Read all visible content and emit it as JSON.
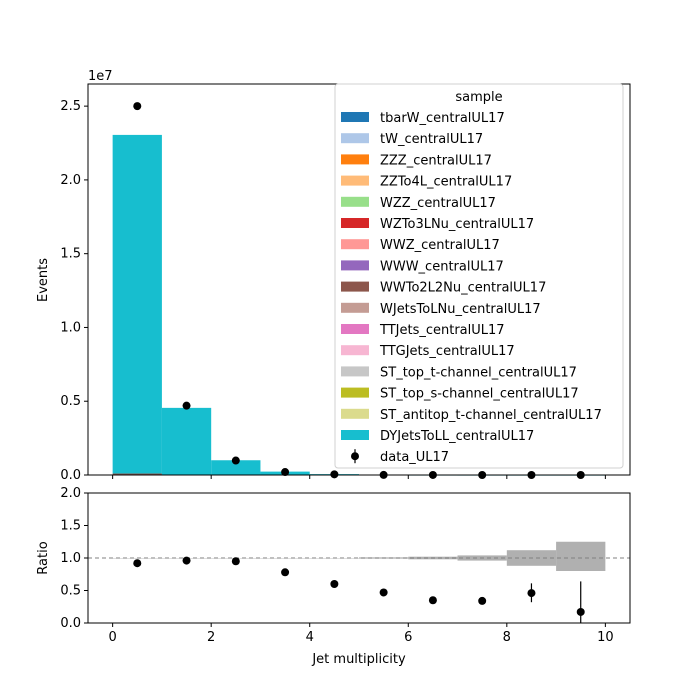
{
  "chart_data": [
    {
      "type": "bar",
      "subtype": "stacked-histogram-with-data-points",
      "xlabel": "",
      "ylabel": "Events",
      "y_scale_label": "1e7",
      "xlim": [
        -0.5,
        10.5
      ],
      "ylim": [
        0,
        26500000
      ],
      "yticks": [
        0,
        5000000,
        10000000,
        15000000,
        20000000,
        25000000
      ],
      "ytick_labels": [
        "0.0",
        "0.5",
        "1.0",
        "1.5",
        "2.0",
        "2.5"
      ],
      "bin_edges": [
        0,
        1,
        2,
        3,
        4,
        5,
        6,
        7,
        8,
        9,
        10
      ],
      "legend_title": "sample",
      "legend_position": "upper-right",
      "series": [
        {
          "name": "tbarW_centralUL17",
          "color": "#1f77b4",
          "values": [
            0,
            0,
            0,
            0,
            0,
            0,
            0,
            0,
            0,
            0
          ]
        },
        {
          "name": "tW_centralUL17",
          "color": "#aec7e8",
          "values": [
            0,
            0,
            0,
            0,
            0,
            0,
            0,
            0,
            0,
            0
          ]
        },
        {
          "name": "ZZZ_centralUL17",
          "color": "#ff7f0e",
          "values": [
            0,
            0,
            0,
            0,
            0,
            0,
            0,
            0,
            0,
            0
          ]
        },
        {
          "name": "ZZTo4L_centralUL17",
          "color": "#ffbb78",
          "values": [
            0,
            0,
            0,
            0,
            0,
            0,
            0,
            0,
            0,
            0
          ]
        },
        {
          "name": "WZZ_centralUL17",
          "color": "#98df8a",
          "values": [
            0,
            0,
            0,
            0,
            0,
            0,
            0,
            0,
            0,
            0
          ]
        },
        {
          "name": "WZTo3LNu_centralUL17",
          "color": "#d62728",
          "values": [
            0,
            0,
            0,
            0,
            0,
            0,
            0,
            0,
            0,
            0
          ]
        },
        {
          "name": "WWZ_centralUL17",
          "color": "#ff9896",
          "values": [
            0,
            0,
            0,
            0,
            0,
            0,
            0,
            0,
            0,
            0
          ]
        },
        {
          "name": "WWW_centralUL17",
          "color": "#9467bd",
          "values": [
            0,
            0,
            0,
            0,
            0,
            0,
            0,
            0,
            0,
            0
          ]
        },
        {
          "name": "WWTo2L2Nu_centralUL17",
          "color": "#8c564b",
          "values": [
            100000,
            0,
            0,
            0,
            0,
            0,
            0,
            0,
            0,
            0
          ]
        },
        {
          "name": "WJetsToLNu_centralUL17",
          "color": "#c49c94",
          "values": [
            0,
            0,
            0,
            0,
            0,
            0,
            0,
            0,
            0,
            0
          ]
        },
        {
          "name": "TTJets_centralUL17",
          "color": "#e377c2",
          "values": [
            0,
            0,
            0,
            0,
            0,
            0,
            0,
            0,
            0,
            0
          ]
        },
        {
          "name": "TTGJets_centralUL17",
          "color": "#f7b6d2",
          "values": [
            0,
            0,
            0,
            0,
            0,
            0,
            0,
            0,
            0,
            0
          ]
        },
        {
          "name": "ST_top_t-channel_centralUL17",
          "color": "#c7c7c7",
          "values": [
            0,
            0,
            0,
            0,
            0,
            0,
            0,
            0,
            0,
            0
          ]
        },
        {
          "name": "ST_top_s-channel_centralUL17",
          "color": "#bcbd22",
          "values": [
            0,
            0,
            0,
            0,
            0,
            0,
            0,
            0,
            0,
            0
          ]
        },
        {
          "name": "ST_antitop_t-channel_centralUL17",
          "color": "#dbdb8d",
          "values": [
            0,
            0,
            0,
            0,
            0,
            0,
            0,
            0,
            0,
            0
          ]
        },
        {
          "name": "DYJetsToLL_centralUL17",
          "color": "#17becf",
          "values": [
            22950000,
            4550000,
            1000000,
            230000,
            60000,
            12000,
            3000,
            800,
            200,
            60
          ]
        }
      ],
      "data_points": {
        "name": "data_UL17",
        "x": [
          0.5,
          1.5,
          2.5,
          3.5,
          4.5,
          5.5,
          6.5,
          7.5,
          8.5,
          9.5
        ],
        "y": [
          25000000,
          4700000,
          980000,
          200000,
          45000,
          7000,
          1500,
          400,
          100,
          15
        ]
      }
    },
    {
      "type": "scatter",
      "subtype": "ratio-panel",
      "xlabel": "Jet multiplicity",
      "ylabel": "Ratio",
      "xlim": [
        -0.5,
        10.5
      ],
      "ylim": [
        0,
        2
      ],
      "xticks": [
        0,
        2,
        4,
        6,
        8,
        10
      ],
      "xtick_labels": [
        "0",
        "2",
        "4",
        "6",
        "8",
        "10"
      ],
      "yticks": [
        0,
        0.5,
        1.0,
        1.5,
        2.0
      ],
      "ytick_labels": [
        "0.0",
        "0.5",
        "1.0",
        "1.5",
        "2.0"
      ],
      "reference_line": 1.0,
      "uncertainty_band": {
        "color": "#b0b0b0",
        "bin_edges": [
          0,
          1,
          2,
          3,
          4,
          5,
          6,
          7,
          8,
          9,
          10
        ],
        "low": [
          1.0,
          1.0,
          1.0,
          1.0,
          1.0,
          0.99,
          0.98,
          0.96,
          0.88,
          0.8
        ],
        "high": [
          1.0,
          1.0,
          1.0,
          1.0,
          1.0,
          1.01,
          1.02,
          1.04,
          1.12,
          1.25
        ]
      },
      "points": {
        "x": [
          0.5,
          1.5,
          2.5,
          3.5,
          4.5,
          5.5,
          6.5,
          7.5,
          8.5,
          9.5
        ],
        "y": [
          0.92,
          0.96,
          0.95,
          0.78,
          0.6,
          0.47,
          0.35,
          0.34,
          0.46,
          0.17
        ],
        "err_low": [
          0.0,
          0.0,
          0.0,
          0.0,
          0.0,
          0.0,
          0.0,
          0.04,
          0.14,
          0.17
        ],
        "err_high": [
          0.0,
          0.0,
          0.0,
          0.0,
          0.0,
          0.0,
          0.0,
          0.04,
          0.15,
          0.47
        ]
      }
    }
  ]
}
